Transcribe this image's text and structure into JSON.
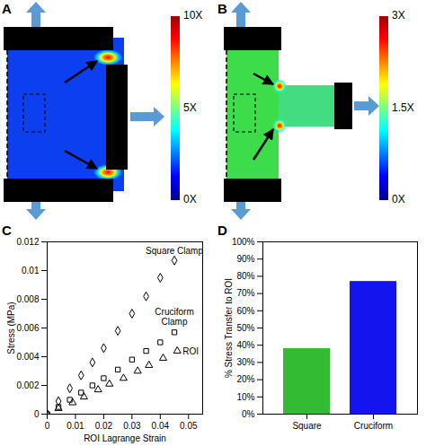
{
  "panel_labels": [
    "A",
    "B",
    "C",
    "D"
  ],
  "stress_maps": [
    {
      "geometry": "square",
      "colorbar": {
        "range": [
          0,
          10
        ],
        "ticks": [
          {
            "value": 0,
            "label": "0X"
          },
          {
            "value": 5,
            "label": "5X"
          },
          {
            "value": 10,
            "label": "10X"
          }
        ]
      }
    },
    {
      "geometry": "cruciform",
      "colorbar": {
        "range": [
          0,
          3
        ],
        "ticks": [
          {
            "value": 0,
            "label": "0X"
          },
          {
            "value": 1.5,
            "label": "1.5X"
          },
          {
            "value": 3,
            "label": "3X"
          }
        ]
      }
    }
  ],
  "chart_data": [
    {
      "type": "scatter",
      "x_label": "ROI Lagrange Strain",
      "y_label": "Stress (MPa)",
      "xlim": [
        0,
        0.055
      ],
      "ylim": [
        0,
        0.012
      ],
      "xticks": [
        0,
        0.01,
        0.02,
        0.03,
        0.04,
        0.05
      ],
      "yticks": [
        0,
        0.002,
        0.004,
        0.006,
        0.008,
        0.01,
        0.012
      ],
      "series": [
        {
          "name": "Square Clamp",
          "marker": "diamond",
          "color": "#000000",
          "x": [
            0,
            0.004,
            0.008,
            0.012,
            0.016,
            0.02,
            0.025,
            0.03,
            0.035,
            0.04,
            0.045
          ],
          "values": [
            0,
            0.0009,
            0.0018,
            0.0027,
            0.0036,
            0.0046,
            0.0058,
            0.007,
            0.0082,
            0.0095,
            0.0107
          ]
        },
        {
          "name": "Cruciform Clamp",
          "marker": "square",
          "color": "#000000",
          "x": [
            0,
            0.004,
            0.008,
            0.012,
            0.016,
            0.02,
            0.025,
            0.03,
            0.035,
            0.04,
            0.045
          ],
          "values": [
            0,
            0.0005,
            0.001,
            0.0015,
            0.002,
            0.0025,
            0.0031,
            0.0038,
            0.0044,
            0.005,
            0.0057
          ]
        },
        {
          "name": "ROI",
          "marker": "triangle",
          "color": "#000000",
          "x": [
            0,
            0.004,
            0.009,
            0.013,
            0.018,
            0.022,
            0.027,
            0.032,
            0.036,
            0.041,
            0.046
          ],
          "values": [
            0,
            0.0004,
            0.0008,
            0.0012,
            0.0017,
            0.0021,
            0.0025,
            0.003,
            0.0034,
            0.0039,
            0.0044
          ]
        }
      ]
    },
    {
      "type": "bar",
      "y_label": "% Stress Transfer to ROI",
      "categories": [
        "Square",
        "Cruciform"
      ],
      "values": [
        38,
        77
      ],
      "colors": [
        "#33bb33",
        "#1414ee"
      ],
      "ylim": [
        0,
        100
      ],
      "yticks": [
        {
          "value": 0,
          "label": "0%"
        },
        {
          "value": 10,
          "label": "10%"
        },
        {
          "value": 20,
          "label": "20%"
        },
        {
          "value": 30,
          "label": "30%"
        },
        {
          "value": 40,
          "label": "40%"
        },
        {
          "value": 50,
          "label": "50%"
        },
        {
          "value": 60,
          "label": "60%"
        },
        {
          "value": 70,
          "label": "70%"
        },
        {
          "value": 80,
          "label": "80%"
        },
        {
          "value": 90,
          "label": "90%"
        },
        {
          "value": 100,
          "label": "100%"
        }
      ]
    }
  ]
}
